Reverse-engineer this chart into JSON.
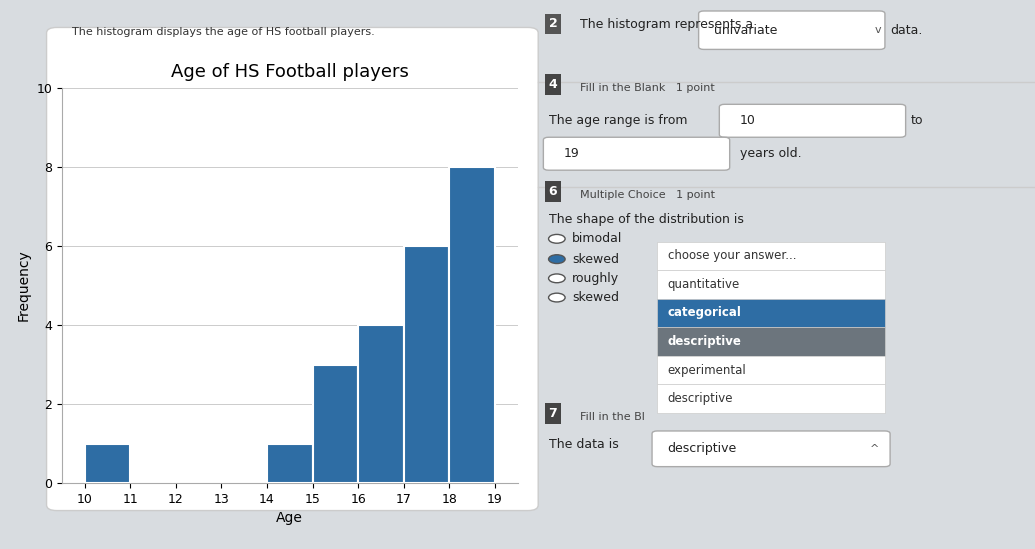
{
  "title": "Age of HS Football players",
  "xlabel": "Age",
  "ylabel": "Frequency",
  "ages": [
    10,
    11,
    12,
    13,
    14,
    15,
    16,
    17,
    18
  ],
  "frequencies": [
    1,
    0,
    0,
    0,
    1,
    3,
    4,
    6,
    8
  ],
  "bar_color": "#2E6DA4",
  "bar_edge_color": "white",
  "ylim": [
    0,
    10
  ],
  "yticks": [
    0,
    2,
    4,
    6,
    8,
    10
  ],
  "xticks": [
    10,
    11,
    12,
    13,
    14,
    15,
    16,
    17,
    18,
    19
  ],
  "page_bg": "#d8dce0",
  "card_bg": "#f0f2f4",
  "plot_bg": "white",
  "title_fontsize": 13,
  "label_fontsize": 10,
  "tick_fontsize": 9,
  "header_text": "The histogram displays the age of HS football players.",
  "right_line1": "The histogram represents a",
  "right_line1_answer": "univariate",
  "right_line1_suffix": "data.",
  "q4_label": "4",
  "q4_text": "Fill in the Blank   1 point",
  "q4_line": "The age range is from",
  "q4_ans1": "10",
  "q4_to": "to",
  "q4_ans2": "19",
  "q4_suffix": "years old.",
  "q6_label": "6",
  "q6_type": "Multiple Choice   1 point",
  "q6_text": "The shape of the distribution is",
  "q6_opt1": "bimodal",
  "q6_opt2": "skewed",
  "q6_opt3": "roughly",
  "q6_opt4": "skewed",
  "dropdown_items": [
    "choose your answer...",
    "quantitative",
    "categorical",
    "descriptive",
    "experimental",
    "descriptive"
  ],
  "q7_label": "7",
  "q7_text": "Fill in the Bl",
  "q7_ans": "The data is",
  "q7_dropdown": "descriptive"
}
